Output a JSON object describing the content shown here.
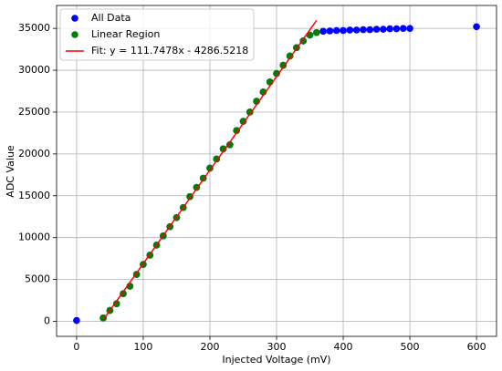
{
  "chart_data": {
    "type": "scatter",
    "xlabel": "Injected Voltage (mV)",
    "ylabel": "ADC Value",
    "xlim": [
      -30,
      630
    ],
    "xticks": [
      0,
      100,
      200,
      300,
      400,
      500,
      600
    ],
    "ylim": [
      -1797,
      37739
    ],
    "yticks": [
      0,
      5000,
      10000,
      15000,
      20000,
      25000,
      30000,
      35000
    ],
    "grid": true,
    "legend": "upper-left",
    "series": [
      {
        "name": "All Data",
        "color": "#0000ff",
        "style": "points",
        "x": [
          0,
          40,
          50,
          60,
          70,
          80,
          90,
          100,
          110,
          120,
          130,
          140,
          150,
          160,
          170,
          180,
          190,
          200,
          210,
          220,
          230,
          240,
          250,
          260,
          270,
          280,
          290,
          300,
          310,
          320,
          330,
          340,
          350,
          360,
          370,
          380,
          390,
          400,
          410,
          420,
          430,
          440,
          450,
          460,
          470,
          480,
          490,
          500,
          600
        ],
        "values": [
          100,
          400,
          1300,
          2100,
          3300,
          4200,
          5600,
          6800,
          7900,
          9100,
          10200,
          11300,
          12400,
          13600,
          14900,
          16000,
          17100,
          18300,
          19400,
          20600,
          21100,
          22800,
          23900,
          25000,
          26300,
          27400,
          28600,
          29600,
          30600,
          31700,
          32700,
          33500,
          34200,
          34500,
          34650,
          34700,
          34750,
          34750,
          34800,
          34800,
          34850,
          34850,
          34900,
          34900,
          34950,
          34950,
          35000,
          35000,
          35200
        ]
      },
      {
        "name": "Linear Region",
        "color": "#008000",
        "style": "points",
        "x": [
          40,
          50,
          60,
          70,
          80,
          90,
          100,
          110,
          120,
          130,
          140,
          150,
          160,
          170,
          180,
          190,
          200,
          210,
          220,
          230,
          240,
          250,
          260,
          270,
          280,
          290,
          300,
          310,
          320,
          330,
          340,
          350,
          360
        ],
        "values": [
          400,
          1300,
          2100,
          3300,
          4200,
          5600,
          6800,
          7900,
          9100,
          10200,
          11300,
          12400,
          13600,
          14900,
          16000,
          17100,
          18300,
          19400,
          20600,
          21100,
          22800,
          23900,
          25000,
          26300,
          27400,
          28600,
          29600,
          30600,
          31700,
          32700,
          33500,
          34200,
          34500
        ]
      },
      {
        "name": "Fit: y = 111.7478x - 4286.5218",
        "color": "#ff0000",
        "style": "line",
        "x": [
          40,
          360
        ],
        "values": [
          183.39,
          35942.69
        ]
      }
    ]
  }
}
